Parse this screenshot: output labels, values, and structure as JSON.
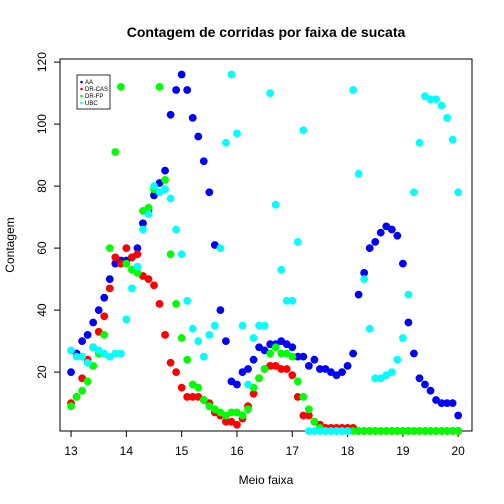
{
  "chart_data": {
    "type": "scatter",
    "title": "Contagem de corridas por faixa de sucata",
    "xlabel": "Meio faixa",
    "ylabel": "Contagem",
    "xlim": [
      12.8,
      20.25
    ],
    "ylim": [
      1,
      121
    ],
    "xticks": [
      13,
      14,
      15,
      16,
      17,
      18,
      19,
      20
    ],
    "yticks": [
      20,
      40,
      60,
      80,
      100,
      120
    ],
    "legend": {
      "position": "top-left",
      "entries": [
        {
          "label": "AA",
          "color": "#0000ff"
        },
        {
          "label": "DR-CAS",
          "color": "#ff0000"
        },
        {
          "label": "DR-FP",
          "color": "#00ff00"
        },
        {
          "label": "UBC",
          "color": "#00ffff"
        }
      ]
    },
    "series": [
      {
        "name": "AA",
        "color": "#0000ff",
        "points": [
          [
            13.0,
            20
          ],
          [
            13.1,
            26
          ],
          [
            13.2,
            30
          ],
          [
            13.3,
            32
          ],
          [
            13.4,
            36
          ],
          [
            13.5,
            40
          ],
          [
            13.6,
            44
          ],
          [
            13.7,
            50
          ],
          [
            13.8,
            55
          ],
          [
            13.9,
            56
          ],
          [
            14.0,
            56
          ],
          [
            14.1,
            57
          ],
          [
            14.2,
            60
          ],
          [
            14.3,
            68
          ],
          [
            14.4,
            72
          ],
          [
            14.5,
            77
          ],
          [
            14.6,
            81
          ],
          [
            14.7,
            85
          ],
          [
            14.8,
            103
          ],
          [
            14.9,
            111
          ],
          [
            15.0,
            116
          ],
          [
            15.1,
            111
          ],
          [
            15.2,
            102
          ],
          [
            15.3,
            96
          ],
          [
            15.4,
            88
          ],
          [
            15.5,
            78
          ],
          [
            15.6,
            61
          ],
          [
            15.7,
            40
          ],
          [
            15.8,
            30
          ],
          [
            15.9,
            17
          ],
          [
            16.0,
            16
          ],
          [
            16.1,
            20
          ],
          [
            16.2,
            21
          ],
          [
            16.3,
            24
          ],
          [
            16.4,
            28
          ],
          [
            16.5,
            27
          ],
          [
            16.6,
            29
          ],
          [
            16.7,
            29
          ],
          [
            16.8,
            30
          ],
          [
            16.9,
            29
          ],
          [
            17.0,
            28
          ],
          [
            17.1,
            25
          ],
          [
            17.2,
            25
          ],
          [
            17.3,
            22
          ],
          [
            17.4,
            24
          ],
          [
            17.5,
            21
          ],
          [
            17.6,
            21
          ],
          [
            17.7,
            20
          ],
          [
            17.8,
            19
          ],
          [
            17.9,
            20
          ],
          [
            18.0,
            22
          ],
          [
            18.1,
            26
          ],
          [
            18.2,
            45
          ],
          [
            18.3,
            52
          ],
          [
            18.4,
            60
          ],
          [
            18.5,
            62
          ],
          [
            18.6,
            65
          ],
          [
            18.7,
            67
          ],
          [
            18.8,
            66
          ],
          [
            18.9,
            64
          ],
          [
            19.0,
            55
          ],
          [
            19.1,
            36
          ],
          [
            19.2,
            26
          ],
          [
            19.3,
            18
          ],
          [
            19.4,
            16
          ],
          [
            19.5,
            14
          ],
          [
            19.6,
            11
          ],
          [
            19.7,
            10
          ],
          [
            19.8,
            10
          ],
          [
            19.9,
            10
          ],
          [
            20.0,
            6
          ]
        ]
      },
      {
        "name": "DR-CAS",
        "color": "#ff0000",
        "points": [
          [
            13.0,
            10
          ],
          [
            13.1,
            12
          ],
          [
            13.2,
            18
          ],
          [
            13.3,
            24
          ],
          [
            13.4,
            28
          ],
          [
            13.5,
            33
          ],
          [
            13.6,
            38
          ],
          [
            13.7,
            47
          ],
          [
            13.8,
            57
          ],
          [
            13.9,
            55
          ],
          [
            14.0,
            60
          ],
          [
            14.1,
            57
          ],
          [
            14.2,
            58
          ],
          [
            14.3,
            51
          ],
          [
            14.4,
            50
          ],
          [
            14.5,
            48
          ],
          [
            14.6,
            42
          ],
          [
            14.7,
            32
          ],
          [
            14.8,
            23
          ],
          [
            14.9,
            20
          ],
          [
            15.0,
            15
          ],
          [
            15.1,
            12
          ],
          [
            15.2,
            12
          ],
          [
            15.3,
            12
          ],
          [
            15.4,
            11
          ],
          [
            15.5,
            10
          ],
          [
            15.6,
            7
          ],
          [
            15.7,
            6
          ],
          [
            15.8,
            4
          ],
          [
            15.9,
            4
          ],
          [
            16.0,
            3
          ],
          [
            16.1,
            5
          ],
          [
            16.2,
            9
          ],
          [
            16.3,
            13
          ],
          [
            16.4,
            18
          ],
          [
            16.5,
            21
          ],
          [
            16.6,
            22
          ],
          [
            16.7,
            22
          ],
          [
            16.8,
            21
          ],
          [
            16.9,
            21
          ],
          [
            17.0,
            19
          ],
          [
            17.1,
            12
          ],
          [
            17.2,
            6
          ],
          [
            17.3,
            6
          ],
          [
            17.4,
            4
          ],
          [
            17.5,
            3
          ],
          [
            17.6,
            2
          ],
          [
            17.7,
            2
          ],
          [
            17.8,
            2
          ],
          [
            17.9,
            2
          ],
          [
            18.0,
            2
          ],
          [
            18.1,
            2
          ],
          [
            18.2,
            1
          ],
          [
            18.3,
            1
          ],
          [
            18.4,
            1
          ],
          [
            18.5,
            1
          ],
          [
            18.6,
            1
          ],
          [
            18.7,
            1
          ],
          [
            18.8,
            1
          ],
          [
            18.9,
            1
          ],
          [
            19.0,
            1
          ],
          [
            19.1,
            1
          ],
          [
            19.2,
            1
          ],
          [
            19.3,
            1
          ],
          [
            19.4,
            1
          ],
          [
            19.5,
            1
          ],
          [
            19.6,
            1
          ],
          [
            19.7,
            1
          ],
          [
            19.8,
            1
          ],
          [
            19.9,
            1
          ],
          [
            20.0,
            1
          ]
        ]
      },
      {
        "name": "DR-FP",
        "color": "#00ff00",
        "points": [
          [
            13.0,
            9
          ],
          [
            13.1,
            12
          ],
          [
            13.2,
            14
          ],
          [
            13.3,
            17
          ],
          [
            13.4,
            22
          ],
          [
            13.5,
            26
          ],
          [
            13.6,
            32
          ],
          [
            13.7,
            60
          ],
          [
            13.8,
            91
          ],
          [
            13.9,
            112
          ],
          [
            14.0,
            55
          ],
          [
            14.1,
            53
          ],
          [
            14.2,
            52
          ],
          [
            14.3,
            72
          ],
          [
            14.4,
            73
          ],
          [
            14.5,
            79
          ],
          [
            14.6,
            112
          ],
          [
            14.7,
            82
          ],
          [
            14.8,
            58
          ],
          [
            14.9,
            42
          ],
          [
            15.0,
            31
          ],
          [
            15.1,
            24
          ],
          [
            15.2,
            16
          ],
          [
            15.3,
            15
          ],
          [
            15.4,
            11
          ],
          [
            15.5,
            9
          ],
          [
            15.6,
            8
          ],
          [
            15.7,
            7
          ],
          [
            15.8,
            6
          ],
          [
            15.9,
            7
          ],
          [
            16.0,
            7
          ],
          [
            16.1,
            6
          ],
          [
            16.2,
            8
          ],
          [
            16.3,
            15
          ],
          [
            16.4,
            18
          ],
          [
            16.5,
            21
          ],
          [
            16.6,
            26
          ],
          [
            16.7,
            28
          ],
          [
            16.8,
            26
          ],
          [
            16.9,
            26
          ],
          [
            17.0,
            25
          ],
          [
            17.1,
            17
          ],
          [
            17.2,
            12
          ],
          [
            17.3,
            8
          ],
          [
            17.4,
            4
          ],
          [
            17.5,
            2
          ],
          [
            17.6,
            1
          ],
          [
            17.7,
            1
          ],
          [
            17.8,
            1
          ],
          [
            17.9,
            1
          ],
          [
            18.0,
            1
          ],
          [
            18.1,
            1
          ],
          [
            18.2,
            1
          ],
          [
            18.3,
            1
          ],
          [
            18.4,
            1
          ],
          [
            18.5,
            1
          ],
          [
            18.6,
            1
          ],
          [
            18.7,
            1
          ],
          [
            18.8,
            1
          ],
          [
            18.9,
            1
          ],
          [
            19.0,
            1
          ],
          [
            19.1,
            1
          ],
          [
            19.2,
            1
          ],
          [
            19.3,
            1
          ],
          [
            19.4,
            1
          ],
          [
            19.5,
            1
          ],
          [
            19.6,
            1
          ],
          [
            19.7,
            1
          ],
          [
            19.8,
            1
          ],
          [
            19.9,
            1
          ],
          [
            20.0,
            1
          ]
        ]
      },
      {
        "name": "UBC",
        "color": "#00ffff",
        "points": [
          [
            13.0,
            27
          ],
          [
            13.1,
            25
          ],
          [
            13.2,
            25
          ],
          [
            13.3,
            23
          ],
          [
            13.4,
            28
          ],
          [
            13.5,
            27
          ],
          [
            13.6,
            26
          ],
          [
            13.7,
            25
          ],
          [
            13.8,
            26
          ],
          [
            13.9,
            26
          ],
          [
            14.0,
            37
          ],
          [
            14.1,
            47
          ],
          [
            14.2,
            54
          ],
          [
            14.3,
            66
          ],
          [
            14.4,
            71
          ],
          [
            14.5,
            80
          ],
          [
            14.6,
            78
          ],
          [
            14.7,
            79
          ],
          [
            14.8,
            76
          ],
          [
            14.9,
            66
          ],
          [
            15.0,
            58
          ],
          [
            15.1,
            43
          ],
          [
            15.2,
            34
          ],
          [
            15.3,
            30
          ],
          [
            15.4,
            25
          ],
          [
            15.5,
            32
          ],
          [
            15.6,
            35
          ],
          [
            15.7,
            60
          ],
          [
            15.8,
            94
          ],
          [
            15.9,
            116
          ],
          [
            16.0,
            97
          ],
          [
            16.1,
            35
          ],
          [
            16.2,
            16
          ],
          [
            16.3,
            31
          ],
          [
            16.4,
            35
          ],
          [
            16.5,
            35
          ],
          [
            16.6,
            110
          ],
          [
            16.7,
            74
          ],
          [
            16.8,
            53
          ],
          [
            16.9,
            43
          ],
          [
            17.0,
            43
          ],
          [
            17.1,
            62
          ],
          [
            17.2,
            98
          ],
          [
            17.3,
            1
          ],
          [
            17.4,
            1
          ],
          [
            17.5,
            1
          ],
          [
            17.6,
            1
          ],
          [
            17.7,
            1
          ],
          [
            17.8,
            1
          ],
          [
            17.9,
            1
          ],
          [
            18.0,
            1
          ],
          [
            18.1,
            111
          ],
          [
            18.2,
            84
          ],
          [
            18.3,
            50
          ],
          [
            18.4,
            34
          ],
          [
            18.5,
            18
          ],
          [
            18.6,
            18
          ],
          [
            18.7,
            19
          ],
          [
            18.8,
            20
          ],
          [
            18.9,
            24
          ],
          [
            19.0,
            31
          ],
          [
            19.1,
            45
          ],
          [
            19.2,
            78
          ],
          [
            19.3,
            94
          ],
          [
            19.4,
            109
          ],
          [
            19.5,
            108
          ],
          [
            19.6,
            108
          ],
          [
            19.7,
            106
          ],
          [
            19.8,
            102
          ],
          [
            19.9,
            95
          ],
          [
            20.0,
            78
          ]
        ]
      }
    ]
  }
}
